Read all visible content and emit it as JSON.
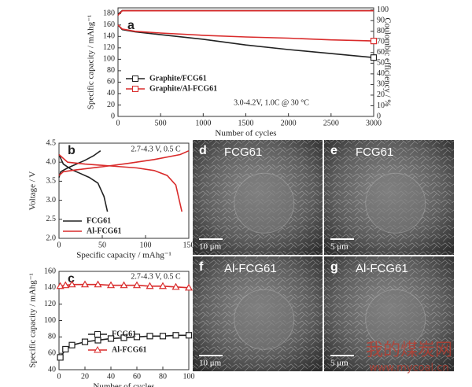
{
  "chart_data": [
    {
      "type": "line",
      "panel_label": "a",
      "annotation": "3.0-4.2V, 1.0C @ 30 °C",
      "x_label": "Number of cycles",
      "y_label": "Specific capacity / mAhg⁻¹",
      "y2_label": "Coulombic efficiency / %",
      "xlim": [
        0,
        3000
      ],
      "xticks": [
        0,
        500,
        1000,
        1500,
        2000,
        2500,
        3000
      ],
      "ylim": [
        0,
        190
      ],
      "yticks": [
        0,
        20,
        40,
        60,
        80,
        100,
        120,
        140,
        160,
        180
      ],
      "y2lim": [
        0,
        102
      ],
      "y2ticks": [
        0,
        10,
        20,
        30,
        40,
        50,
        60,
        70,
        80,
        90,
        100
      ],
      "series": [
        {
          "name": "Graphite/FCG61",
          "color": "#222222",
          "marker": "square",
          "markers": "last",
          "x": [
            0,
            50,
            200,
            500,
            1000,
            1500,
            2000,
            2500,
            3000
          ],
          "values": [
            160,
            152,
            148,
            143,
            135,
            125,
            117,
            110,
            103
          ]
        },
        {
          "name": "Graphite/Al-FCG61",
          "color": "#d92b2b",
          "marker": "square",
          "markers": "last",
          "x": [
            0,
            50,
            200,
            500,
            1000,
            1500,
            2000,
            2500,
            3000
          ],
          "values": [
            160,
            153,
            149,
            146,
            142,
            139,
            137,
            134,
            132
          ]
        },
        {
          "color": "#222222",
          "axis": "y2",
          "x": [
            0,
            50,
            3000
          ],
          "values": [
            96,
            99.5,
            99.5
          ]
        },
        {
          "color": "#d92b2b",
          "axis": "y2",
          "x": [
            0,
            50,
            3000
          ],
          "values": [
            95,
            99.3,
            99.3
          ]
        }
      ]
    },
    {
      "type": "line",
      "panel_label": "b",
      "annotation": "2.7-4.3 V, 0.5 C",
      "x_label": "Specific capacity / mAhg⁻¹",
      "y_label": "Voltage / V",
      "xlim": [
        0,
        150
      ],
      "xticks": [
        0,
        50,
        100,
        150
      ],
      "ylim": [
        2,
        4.5
      ],
      "yticks": [
        {
          "value": 2,
          "label": "2.0"
        },
        2.5,
        {
          "value": 3,
          "label": "3.0"
        },
        3.5,
        {
          "value": 4,
          "label": "4.0"
        },
        4.5
      ],
      "series": [
        {
          "name": "FCG61",
          "color": "#222222",
          "curves": [
            {
              "x": [
                0,
                2,
                10,
                20,
                30,
                40,
                48
              ],
              "values": [
                3.6,
                3.75,
                3.85,
                3.95,
                4.05,
                4.17,
                4.3
              ]
            },
            {
              "x": [
                0,
                5,
                15,
                25,
                35,
                45,
                52,
                56
              ],
              "values": [
                4.2,
                3.95,
                3.8,
                3.7,
                3.6,
                3.45,
                3.1,
                2.7
              ]
            }
          ]
        },
        {
          "name": "Al-FCG61",
          "color": "#d92b2b",
          "curves": [
            {
              "x": [
                0,
                5,
                20,
                50,
                80,
                110,
                140,
                150
              ],
              "values": [
                3.65,
                3.75,
                3.8,
                3.88,
                3.97,
                4.07,
                4.2,
                4.3
              ]
            },
            {
              "x": [
                0,
                10,
                30,
                60,
                90,
                110,
                125,
                135,
                142
              ],
              "values": [
                4.2,
                4.0,
                3.95,
                3.9,
                3.85,
                3.78,
                3.65,
                3.4,
                2.7
              ]
            }
          ]
        }
      ]
    },
    {
      "type": "line",
      "panel_label": "c",
      "annotation": "2.7-4.3 V, 0.5 C",
      "x_label": "Number of cycles",
      "y_label": "Specific capacity / mAhg⁻¹",
      "xlim": [
        0,
        100
      ],
      "xticks": [
        0,
        20,
        40,
        60,
        80,
        100
      ],
      "ylim": [
        40,
        160
      ],
      "yticks": [
        40,
        60,
        80,
        100,
        120,
        140,
        160
      ],
      "series": [
        {
          "name": "FCG61",
          "color": "#222222",
          "marker": "square",
          "markers": "all",
          "x": [
            1,
            5,
            10,
            20,
            30,
            40,
            50,
            60,
            70,
            80,
            90,
            100
          ],
          "values": [
            55,
            65,
            70,
            74,
            76,
            78,
            79,
            80,
            81,
            81,
            82,
            82
          ]
        },
        {
          "name": "Al-FCG61",
          "color": "#d92b2b",
          "marker": "triangle",
          "markers": "all",
          "x": [
            1,
            5,
            10,
            20,
            30,
            40,
            50,
            60,
            70,
            80,
            90,
            100
          ],
          "values": [
            142,
            143,
            144,
            144,
            144,
            143,
            143,
            143,
            142,
            142,
            141,
            140
          ]
        }
      ]
    }
  ],
  "images": [
    {
      "letter": "d",
      "label": "FCG61",
      "scale": "10 μm"
    },
    {
      "letter": "e",
      "label": "FCG61",
      "scale": "5 μm"
    },
    {
      "letter": "f",
      "label": "Al-FCG61",
      "scale": "10 μm"
    },
    {
      "letter": "g",
      "label": "Al-FCG61",
      "scale": "5 μm"
    }
  ],
  "watermark": {
    "name": "我的煤炭网",
    "url": "www.mycoal.cn"
  }
}
